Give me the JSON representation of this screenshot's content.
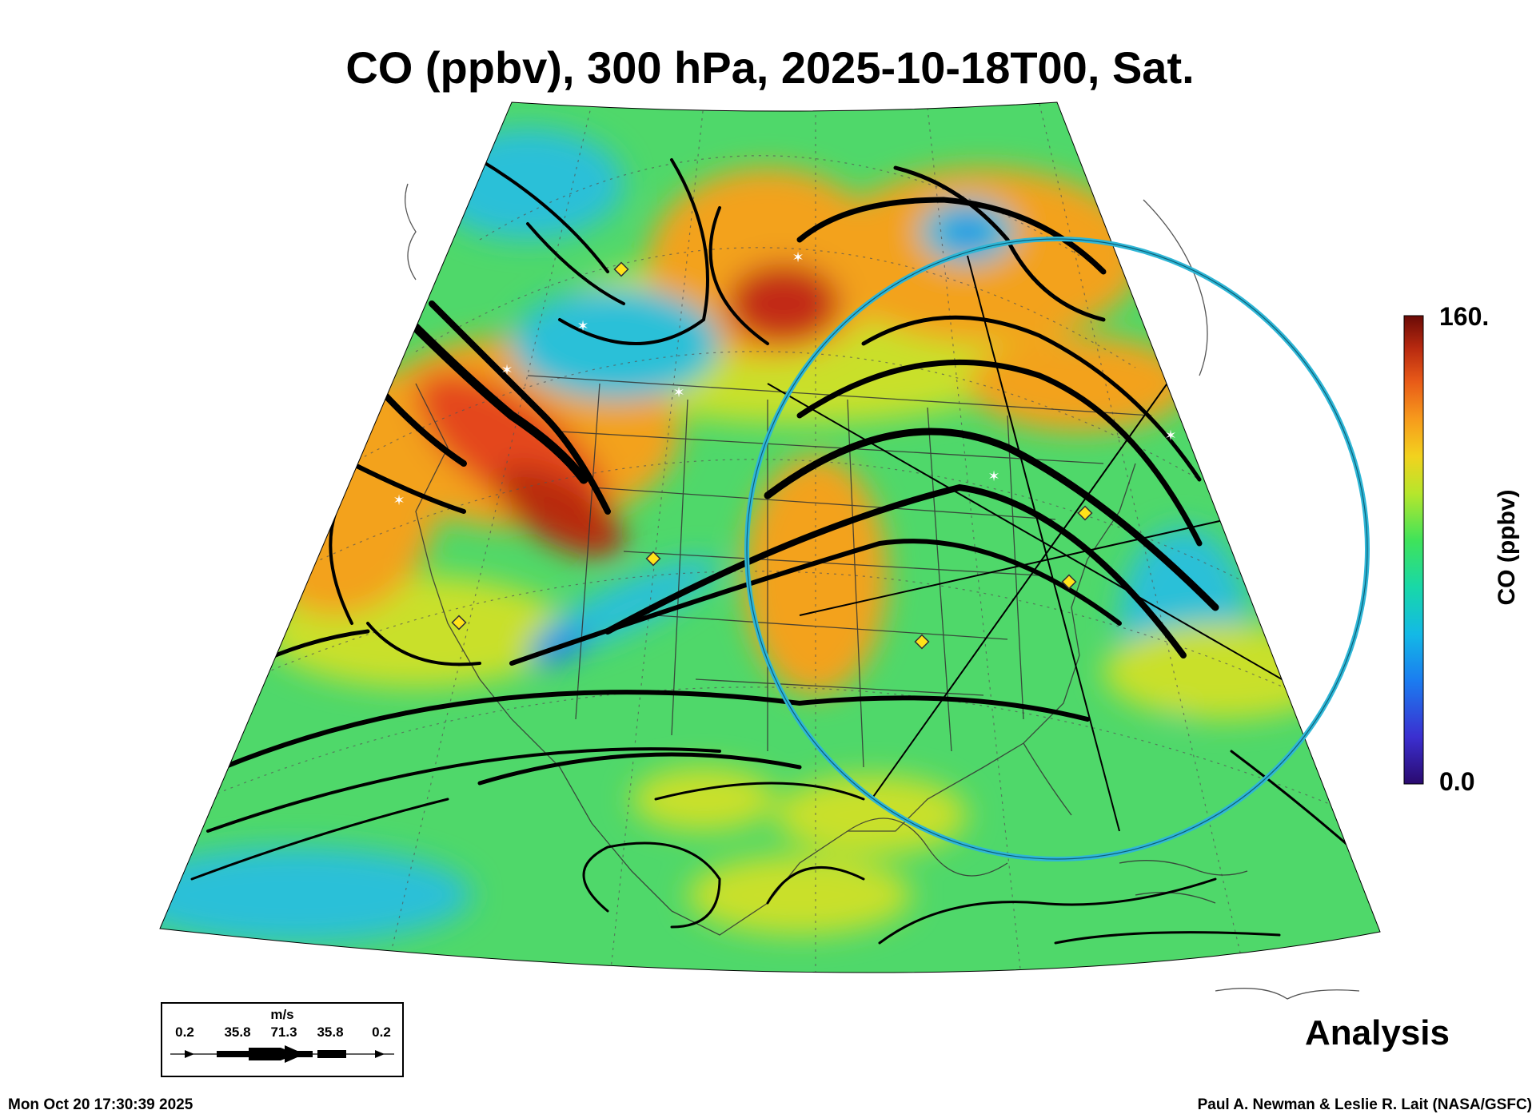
{
  "title": "CO (ppbv), 300 hPa, 2025-10-18T00, Sat.",
  "colorbar": {
    "label": "CO (ppbv)",
    "max_label": "160.",
    "min_label": "0.0",
    "colors": [
      "#2a0a6e",
      "#3b2fd0",
      "#1b7cf0",
      "#13b9e6",
      "#18d8a8",
      "#3fe35a",
      "#b6e62c",
      "#f2d21e",
      "#f79a1c",
      "#e85a18",
      "#b82a10",
      "#6a0a06"
    ]
  },
  "wind_legend": {
    "unit": "m/s",
    "values": [
      "0.2",
      "35.8",
      "71.3",
      "35.8",
      "0.2"
    ]
  },
  "analysis_label": "Analysis",
  "timestamp": "Mon Oct 20 17:30:39 2025",
  "credit": "Paul A. Newman & Leslie R. Lait (NASA/GSFC)",
  "map_colors": {
    "background_field": "#4fd86a",
    "high_co": "#e4461e",
    "mid_co": "#f3a21f",
    "yellow_co": "#c9e02c",
    "low_co": "#2cc0d8",
    "circle": "#2fb6d6",
    "streamline": "#000000",
    "marker_diamond": "#ffe21a",
    "marker_star": "#ffffff"
  }
}
